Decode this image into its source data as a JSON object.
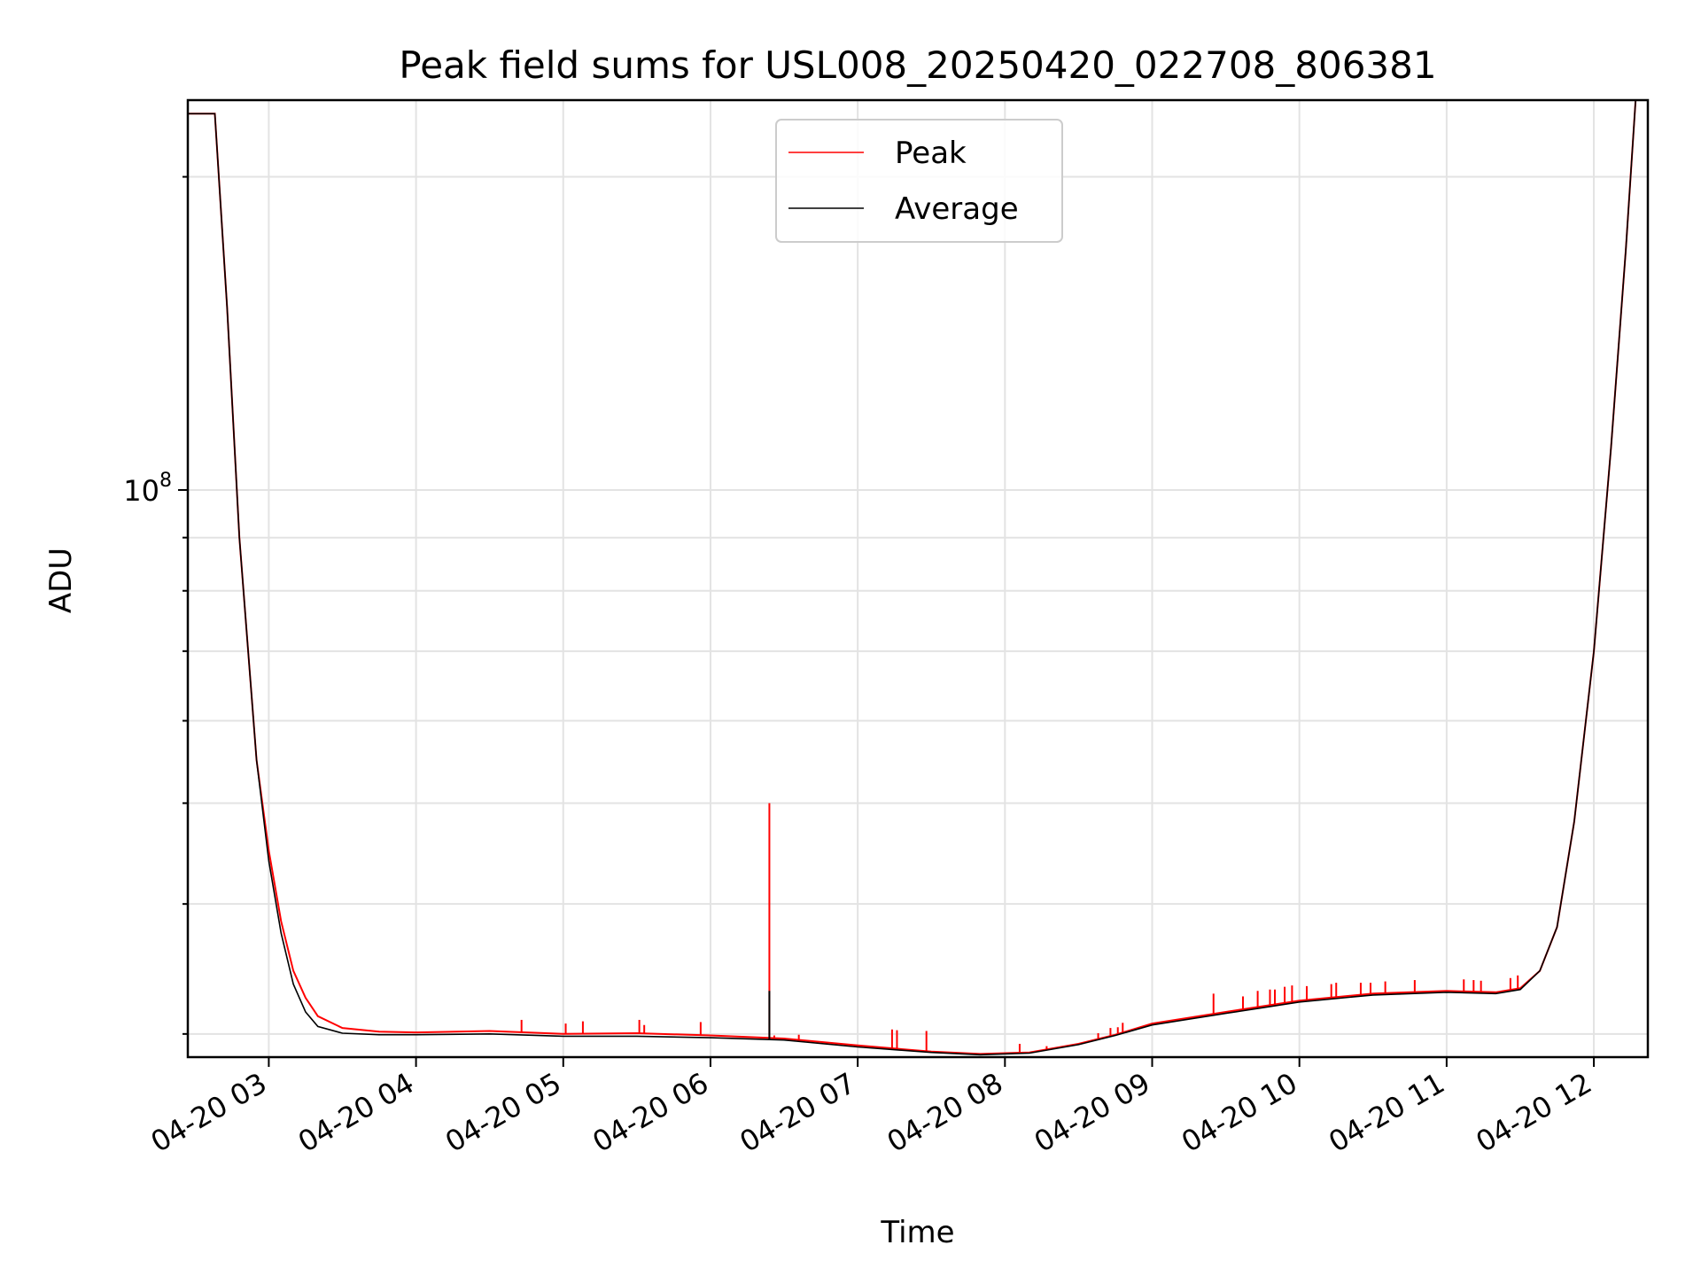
{
  "chart_data": {
    "type": "line",
    "title": "Peak field sums for USL008_20250420_022708_806381",
    "xlabel": "Time",
    "ylabel": "ADU",
    "y_scale": "log",
    "grid": true,
    "legend_placement": "upper-center",
    "x_ticks": [
      "04-20 03",
      "04-20 04",
      "04-20 05",
      "04-20 06",
      "04-20 07",
      "04-20 08",
      "04-20 09",
      "04-20 10",
      "04-20 11",
      "04-20 12"
    ],
    "y_tick_major": {
      "base": "10",
      "exponent": "8"
    },
    "xlim": [
      "2025-04-20 02:27",
      "2025-04-20 12:22"
    ],
    "ylim": [
      28500000,
      237000000
    ],
    "series": [
      {
        "name": "Peak",
        "color": "#ff0000",
        "points": [
          [
            "02:27",
            230000000
          ],
          [
            "02:38",
            230000000
          ],
          [
            "02:43",
            150000000
          ],
          [
            "02:48",
            90000000
          ],
          [
            "02:55",
            55000000
          ],
          [
            "03:00",
            45000000
          ],
          [
            "03:05",
            38500000
          ],
          [
            "03:10",
            34500000
          ],
          [
            "03:15",
            32500000
          ],
          [
            "03:20",
            31200000
          ],
          [
            "03:30",
            30400000
          ],
          [
            "03:45",
            30150000
          ],
          [
            "04:00",
            30100000
          ],
          [
            "04:30",
            30200000
          ],
          [
            "05:00",
            30000000
          ],
          [
            "05:30",
            30050000
          ],
          [
            "06:00",
            29900000
          ],
          [
            "06:30",
            29700000
          ],
          [
            "07:00",
            29250000
          ],
          [
            "07:30",
            28850000
          ],
          [
            "07:50",
            28700000
          ],
          [
            "08:10",
            28800000
          ],
          [
            "08:30",
            29350000
          ],
          [
            "08:45",
            29950000
          ],
          [
            "09:00",
            30700000
          ],
          [
            "09:30",
            31500000
          ],
          [
            "10:00",
            32300000
          ],
          [
            "10:30",
            32800000
          ],
          [
            "11:00",
            33000000
          ],
          [
            "11:20",
            32900000
          ],
          [
            "11:30",
            33200000
          ],
          [
            "11:38",
            34500000
          ],
          [
            "11:45",
            38000000
          ],
          [
            "11:52",
            48000000
          ],
          [
            "12:00",
            70000000
          ],
          [
            "12:07",
            110000000
          ],
          [
            "12:13",
            170000000
          ],
          [
            "12:17",
            237000000
          ]
        ],
        "spikes": [
          [
            "04:43",
            30950000
          ],
          [
            "05:01",
            30700000
          ],
          [
            "05:08",
            30850000
          ],
          [
            "05:31",
            30950000
          ],
          [
            "05:33",
            30600000
          ],
          [
            "05:56",
            30800000
          ],
          [
            "06:24",
            50000000
          ],
          [
            "06:26",
            29900000
          ],
          [
            "06:36",
            29950000
          ],
          [
            "07:14",
            30300000
          ],
          [
            "07:16",
            30250000
          ],
          [
            "07:28",
            30200000
          ],
          [
            "08:06",
            29350000
          ],
          [
            "08:17",
            29200000
          ],
          [
            "08:23",
            29150000
          ],
          [
            "08:38",
            30050000
          ],
          [
            "08:43",
            30400000
          ],
          [
            "08:46",
            30450000
          ],
          [
            "08:48",
            30750000
          ],
          [
            "09:25",
            32800000
          ],
          [
            "09:37",
            32600000
          ],
          [
            "09:43",
            33000000
          ],
          [
            "09:48",
            33100000
          ],
          [
            "09:50",
            33100000
          ],
          [
            "09:54",
            33300000
          ],
          [
            "09:57",
            33400000
          ],
          [
            "10:03",
            33350000
          ],
          [
            "10:13",
            33500000
          ],
          [
            "10:15",
            33600000
          ],
          [
            "10:25",
            33600000
          ],
          [
            "10:29",
            33600000
          ],
          [
            "10:35",
            33700000
          ],
          [
            "10:47",
            33800000
          ],
          [
            "11:07",
            33850000
          ],
          [
            "11:11",
            33800000
          ],
          [
            "11:14",
            33750000
          ],
          [
            "11:26",
            33950000
          ],
          [
            "11:29",
            34150000
          ]
        ]
      },
      {
        "name": "Average",
        "color": "#000000",
        "points": [
          [
            "02:27",
            230000000
          ],
          [
            "02:38",
            230000000
          ],
          [
            "02:43",
            150000000
          ],
          [
            "02:48",
            90000000
          ],
          [
            "02:55",
            55000000
          ],
          [
            "03:00",
            44000000
          ],
          [
            "03:05",
            37500000
          ],
          [
            "03:10",
            33500000
          ],
          [
            "03:15",
            31500000
          ],
          [
            "03:20",
            30500000
          ],
          [
            "03:30",
            30050000
          ],
          [
            "03:45",
            29950000
          ],
          [
            "04:00",
            29950000
          ],
          [
            "04:30",
            30000000
          ],
          [
            "05:00",
            29850000
          ],
          [
            "05:30",
            29850000
          ],
          [
            "06:00",
            29750000
          ],
          [
            "06:30",
            29600000
          ],
          [
            "07:00",
            29150000
          ],
          [
            "07:30",
            28800000
          ],
          [
            "07:50",
            28650000
          ],
          [
            "08:10",
            28750000
          ],
          [
            "08:30",
            29300000
          ],
          [
            "08:45",
            29900000
          ],
          [
            "09:00",
            30600000
          ],
          [
            "09:30",
            31400000
          ],
          [
            "10:00",
            32200000
          ],
          [
            "10:30",
            32700000
          ],
          [
            "11:00",
            32900000
          ],
          [
            "11:20",
            32800000
          ],
          [
            "11:30",
            33100000
          ],
          [
            "11:38",
            34500000
          ],
          [
            "11:45",
            38000000
          ],
          [
            "11:52",
            48000000
          ],
          [
            "12:00",
            70000000
          ],
          [
            "12:07",
            110000000
          ],
          [
            "12:13",
            170000000
          ],
          [
            "12:17",
            237000000
          ]
        ],
        "spikes": [
          [
            "06:24",
            33000000
          ]
        ]
      }
    ]
  }
}
